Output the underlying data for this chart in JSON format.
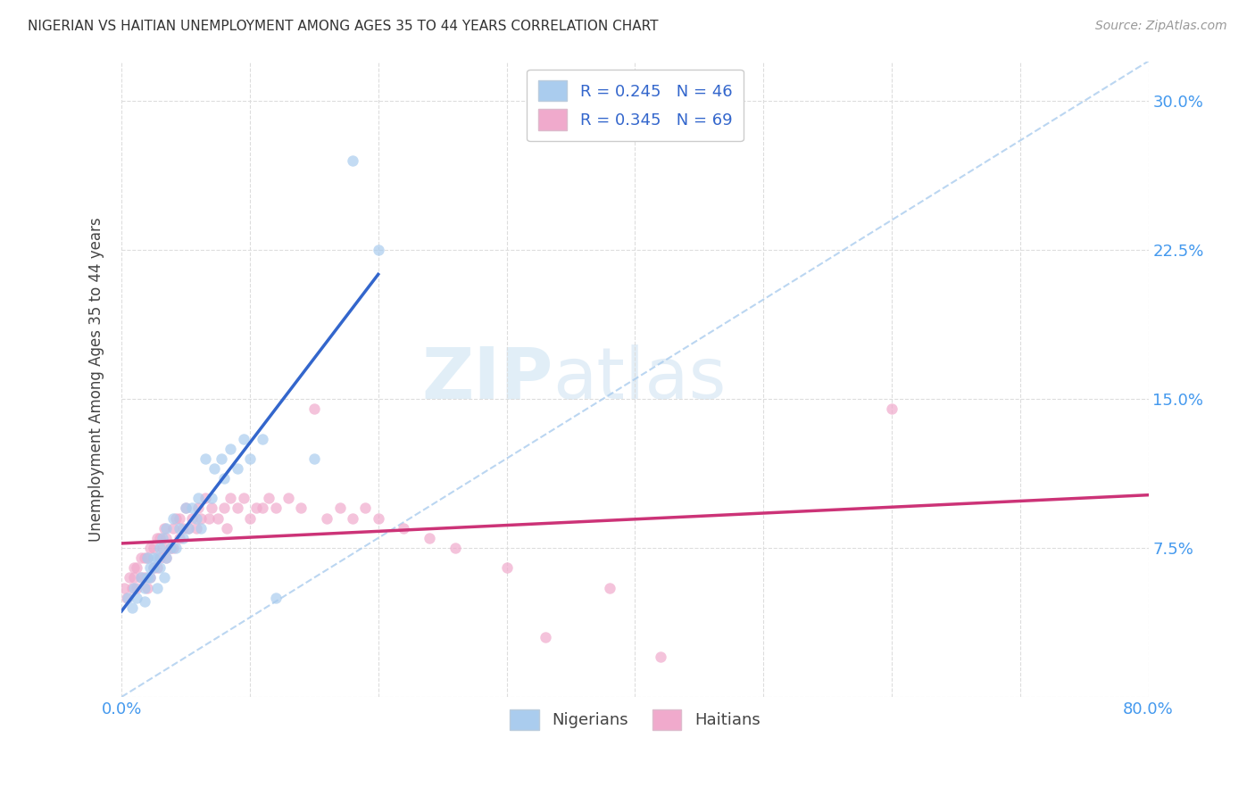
{
  "title": "NIGERIAN VS HAITIAN UNEMPLOYMENT AMONG AGES 35 TO 44 YEARS CORRELATION CHART",
  "source": "Source: ZipAtlas.com",
  "ylabel": "Unemployment Among Ages 35 to 44 years",
  "xlim": [
    0.0,
    0.8
  ],
  "ylim": [
    0.0,
    0.32
  ],
  "nigerian_color": "#aaccee",
  "haitian_color": "#f0aacc",
  "trend_nigerian_color": "#3366cc",
  "trend_haitian_color": "#cc3377",
  "diagonal_color": "#aaccee",
  "nigerian_R": 0.245,
  "nigerian_N": 46,
  "haitian_R": 0.345,
  "haitian_N": 69,
  "watermark_zip": "ZIP",
  "watermark_atlas": "atlas",
  "nigerian_x": [
    0.005,
    0.008,
    0.01,
    0.012,
    0.015,
    0.018,
    0.018,
    0.02,
    0.02,
    0.022,
    0.022,
    0.025,
    0.025,
    0.028,
    0.028,
    0.03,
    0.03,
    0.032,
    0.033,
    0.035,
    0.035,
    0.038,
    0.04,
    0.042,
    0.045,
    0.048,
    0.05,
    0.052,
    0.055,
    0.058,
    0.06,
    0.062,
    0.065,
    0.07,
    0.072,
    0.078,
    0.08,
    0.085,
    0.09,
    0.095,
    0.1,
    0.11,
    0.12,
    0.15,
    0.18,
    0.2
  ],
  "nigerian_y": [
    0.05,
    0.045,
    0.055,
    0.05,
    0.06,
    0.055,
    0.048,
    0.06,
    0.07,
    0.065,
    0.06,
    0.07,
    0.065,
    0.07,
    0.055,
    0.075,
    0.065,
    0.08,
    0.06,
    0.085,
    0.07,
    0.075,
    0.09,
    0.075,
    0.085,
    0.08,
    0.095,
    0.085,
    0.095,
    0.09,
    0.1,
    0.085,
    0.12,
    0.1,
    0.115,
    0.12,
    0.11,
    0.125,
    0.115,
    0.13,
    0.12,
    0.13,
    0.05,
    0.12,
    0.27,
    0.225
  ],
  "haitian_x": [
    0.002,
    0.004,
    0.006,
    0.008,
    0.01,
    0.01,
    0.012,
    0.012,
    0.015,
    0.015,
    0.018,
    0.018,
    0.02,
    0.02,
    0.022,
    0.022,
    0.025,
    0.025,
    0.028,
    0.028,
    0.03,
    0.03,
    0.032,
    0.033,
    0.035,
    0.035,
    0.038,
    0.04,
    0.04,
    0.042,
    0.045,
    0.045,
    0.048,
    0.05,
    0.052,
    0.055,
    0.058,
    0.06,
    0.062,
    0.065,
    0.068,
    0.07,
    0.075,
    0.08,
    0.082,
    0.085,
    0.09,
    0.095,
    0.1,
    0.105,
    0.11,
    0.115,
    0.12,
    0.13,
    0.14,
    0.15,
    0.16,
    0.17,
    0.18,
    0.19,
    0.2,
    0.22,
    0.24,
    0.26,
    0.3,
    0.33,
    0.38,
    0.42,
    0.6
  ],
  "haitian_y": [
    0.055,
    0.05,
    0.06,
    0.055,
    0.06,
    0.065,
    0.055,
    0.065,
    0.06,
    0.07,
    0.06,
    0.07,
    0.055,
    0.07,
    0.06,
    0.075,
    0.065,
    0.075,
    0.065,
    0.08,
    0.07,
    0.08,
    0.075,
    0.085,
    0.07,
    0.08,
    0.075,
    0.085,
    0.075,
    0.09,
    0.08,
    0.09,
    0.085,
    0.095,
    0.085,
    0.09,
    0.085,
    0.095,
    0.09,
    0.1,
    0.09,
    0.095,
    0.09,
    0.095,
    0.085,
    0.1,
    0.095,
    0.1,
    0.09,
    0.095,
    0.095,
    0.1,
    0.095,
    0.1,
    0.095,
    0.145,
    0.09,
    0.095,
    0.09,
    0.095,
    0.09,
    0.085,
    0.08,
    0.075,
    0.065,
    0.03,
    0.055,
    0.02,
    0.145
  ],
  "background_color": "#ffffff",
  "grid_color": "#dddddd"
}
